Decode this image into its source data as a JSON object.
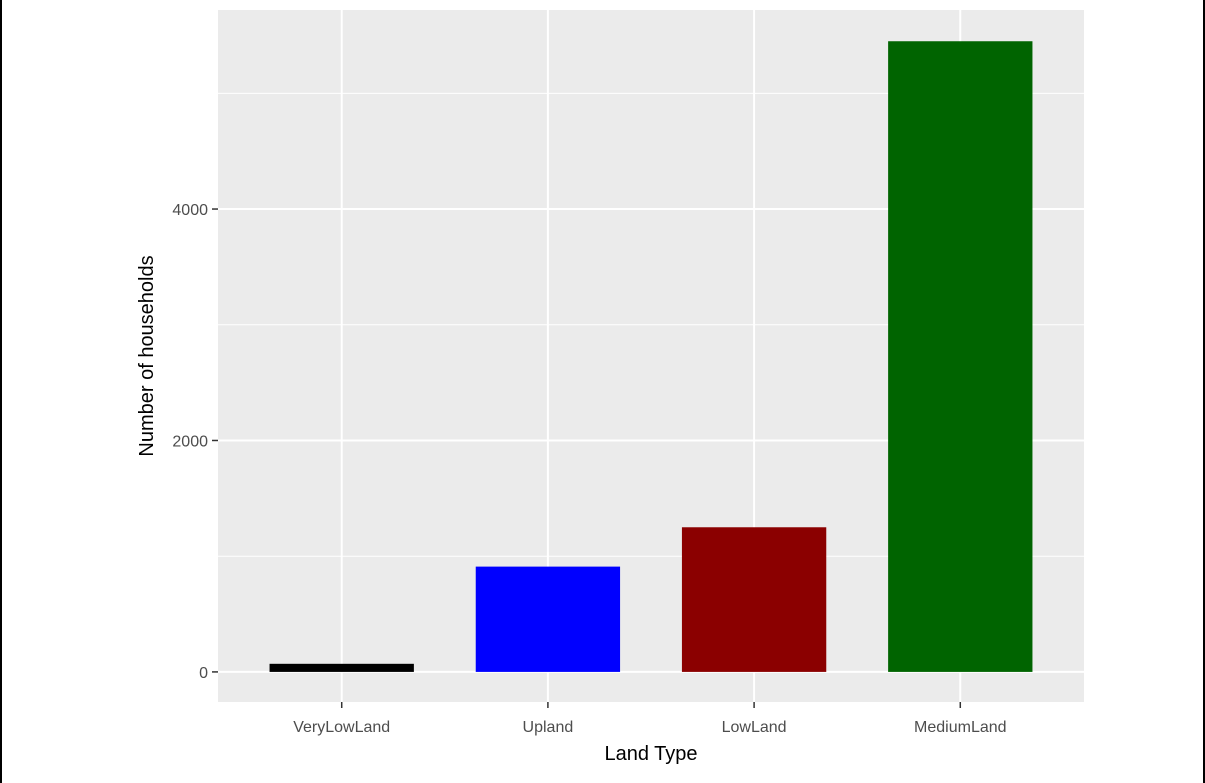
{
  "chart_data": {
    "type": "bar",
    "title": "",
    "xlabel": "Land Type",
    "ylabel": "Number of households",
    "categories": [
      "VeryLowLand",
      "Upland",
      "LowLand",
      "MediumLand"
    ],
    "values": [
      70,
      910,
      1250,
      5450
    ],
    "colors": [
      "#000000",
      "#0000FF",
      "#8B0000",
      "#006400"
    ],
    "ylim": [
      -260,
      5720
    ],
    "yticks": [
      0,
      2000,
      4000
    ],
    "ytick_labels": [
      "0",
      "2000",
      "4000"
    ],
    "grid": true,
    "legend": "none",
    "panel_background": "#EBEBEB",
    "grid_color": "#FFFFFF"
  }
}
